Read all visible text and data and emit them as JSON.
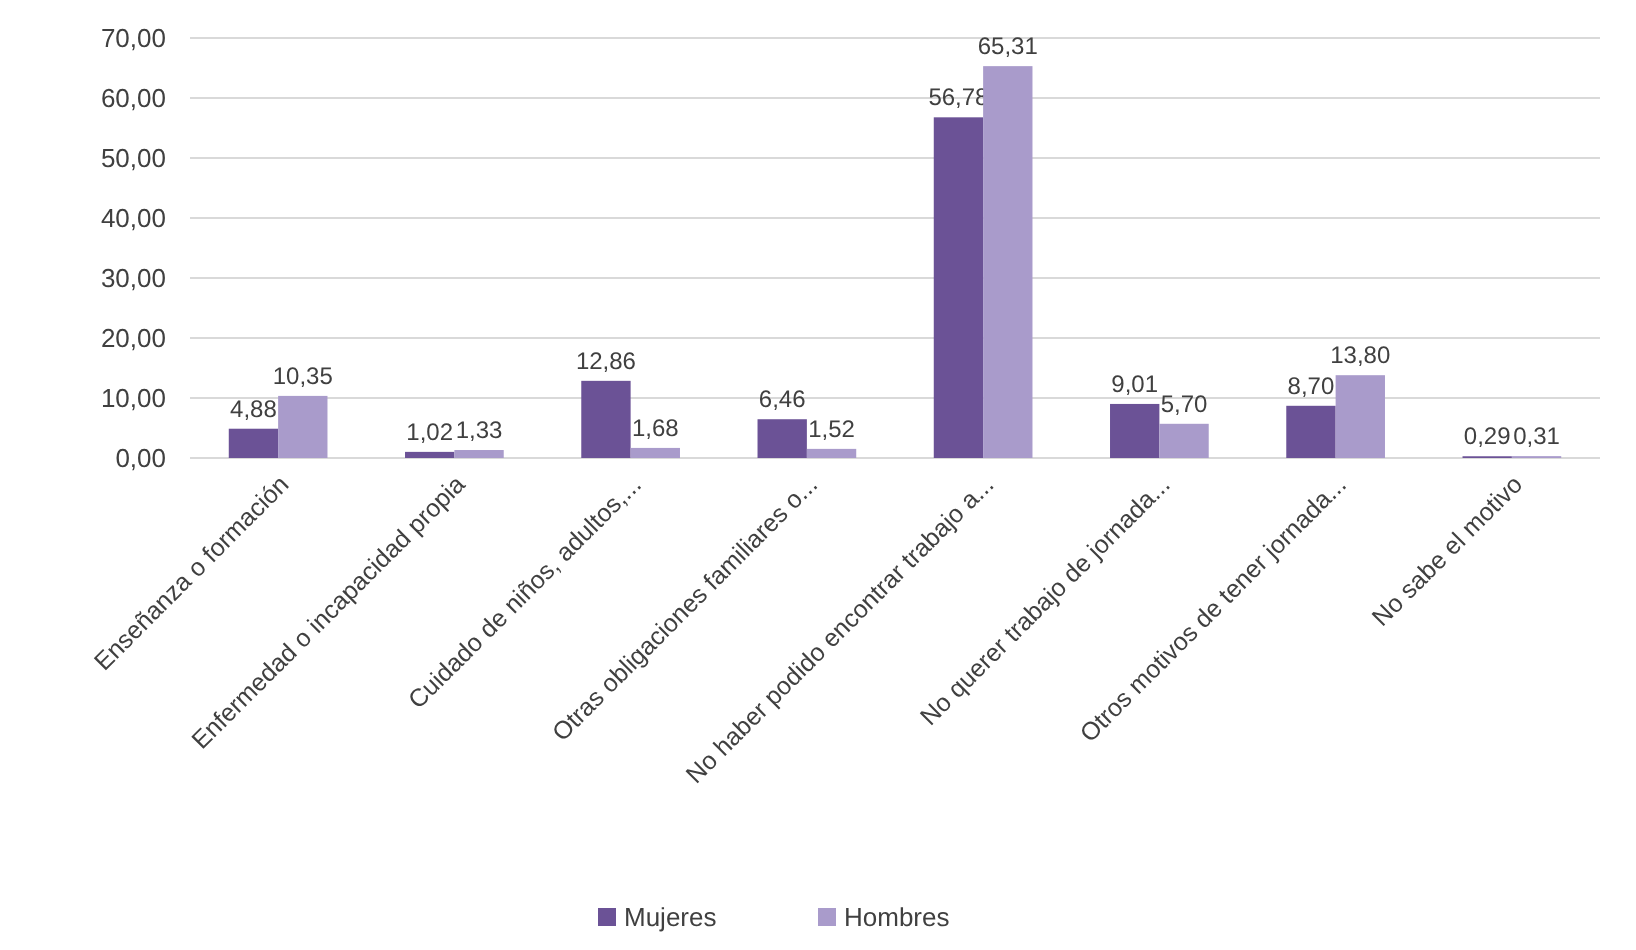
{
  "chart_data": {
    "type": "bar",
    "categories": [
      "Enseñanza o formación",
      "Enfermedad o incapacidad propia",
      "Cuidado de niños, adultos,...",
      "Otras obligaciones familiares o...",
      "No haber podido encontrar trabajo a...",
      "No querer trabajo de jornada...",
      "Otros motivos de tener jornada...",
      "No sabe el motivo"
    ],
    "series": [
      {
        "name": "Mujeres",
        "color": "#6b5296",
        "values": [
          4.88,
          1.02,
          12.86,
          6.46,
          56.78,
          9.01,
          8.7,
          0.29
        ],
        "value_labels": [
          "4,88",
          "1,02",
          "12,86",
          "6,46",
          "56,78",
          "9,01",
          "8,70",
          "0,29"
        ]
      },
      {
        "name": "Hombres",
        "color": "#a99bcb",
        "values": [
          10.35,
          1.33,
          1.68,
          1.52,
          65.31,
          5.7,
          13.8,
          0.31
        ],
        "value_labels": [
          "10,35",
          "1,33",
          "1,68",
          "1,52",
          "65,31",
          "5,70",
          "13,80",
          "0,31"
        ]
      }
    ],
    "ylim": [
      0,
      70
    ],
    "yticks": [
      {
        "value": 0,
        "label": "0,00"
      },
      {
        "value": 10,
        "label": "10,00"
      },
      {
        "value": 20,
        "label": "20,00"
      },
      {
        "value": 30,
        "label": "30,00"
      },
      {
        "value": 40,
        "label": "40,00"
      },
      {
        "value": 50,
        "label": "50,00"
      },
      {
        "value": 60,
        "label": "60,00"
      },
      {
        "value": 70,
        "label": "70,00"
      }
    ],
    "grid": "y",
    "legend": "bottom"
  }
}
